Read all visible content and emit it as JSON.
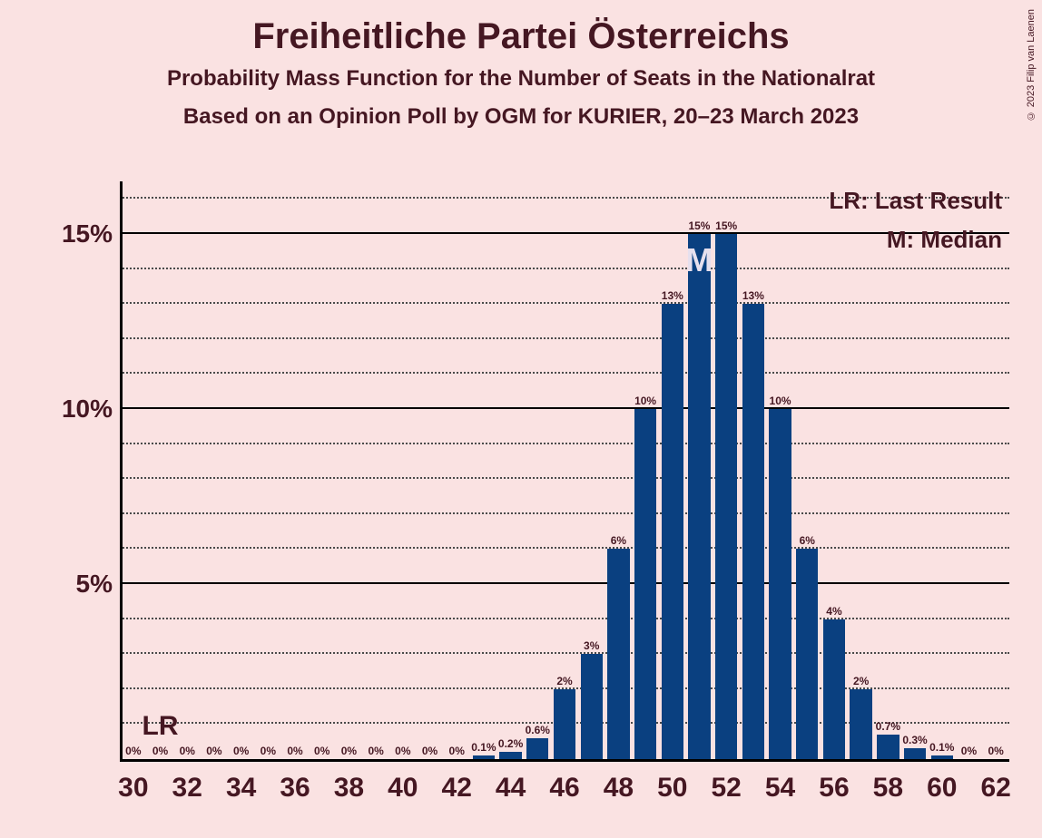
{
  "title": "Freiheitliche Partei Österreichs",
  "subtitle1": "Probability Mass Function for the Number of Seats in the Nationalrat",
  "subtitle2": "Based on an Opinion Poll by OGM for KURIER, 20–23 March 2023",
  "copyright": "© 2023 Filip van Laenen",
  "text_color": "#451722",
  "legend": {
    "lr": "LR: Last Result",
    "m": "M: Median"
  },
  "lr_marker": "LR",
  "median_marker": "M",
  "chart": {
    "type": "bar",
    "bar_color": "#0a4080",
    "background_color": "#fae2e2",
    "x_min": 30,
    "x_max": 62,
    "x_tick_step": 2,
    "y_max_percent": 16.5,
    "y_major_ticks": [
      5,
      10,
      15
    ],
    "y_major_labels": [
      "5%",
      "10%",
      "15%"
    ],
    "y_minor_step": 1,
    "bar_width_ratio": 0.82,
    "lr_seat": 31,
    "median_seat": 51,
    "seats": [
      30,
      31,
      32,
      33,
      34,
      35,
      36,
      37,
      38,
      39,
      40,
      41,
      42,
      43,
      44,
      45,
      46,
      47,
      48,
      49,
      50,
      51,
      52,
      53,
      54,
      55,
      56,
      57,
      58,
      59,
      60,
      61,
      62
    ],
    "values": [
      0,
      0,
      0,
      0,
      0,
      0,
      0,
      0,
      0,
      0,
      0,
      0,
      0,
      0.1,
      0.2,
      0.6,
      2,
      3,
      6,
      10,
      13,
      15,
      15,
      13,
      10,
      6,
      4,
      2,
      0.7,
      0.3,
      0.1,
      0,
      0
    ],
    "labels": [
      "0%",
      "0%",
      "0%",
      "0%",
      "0%",
      "0%",
      "0%",
      "0%",
      "0%",
      "0%",
      "0%",
      "0%",
      "0%",
      "0.1%",
      "0.2%",
      "0.6%",
      "2%",
      "3%",
      "6%",
      "10%",
      "13%",
      "15%",
      "15%",
      "13%",
      "10%",
      "6%",
      "4%",
      "2%",
      "0.7%",
      "0.3%",
      "0.1%",
      "0%",
      "0%"
    ]
  }
}
